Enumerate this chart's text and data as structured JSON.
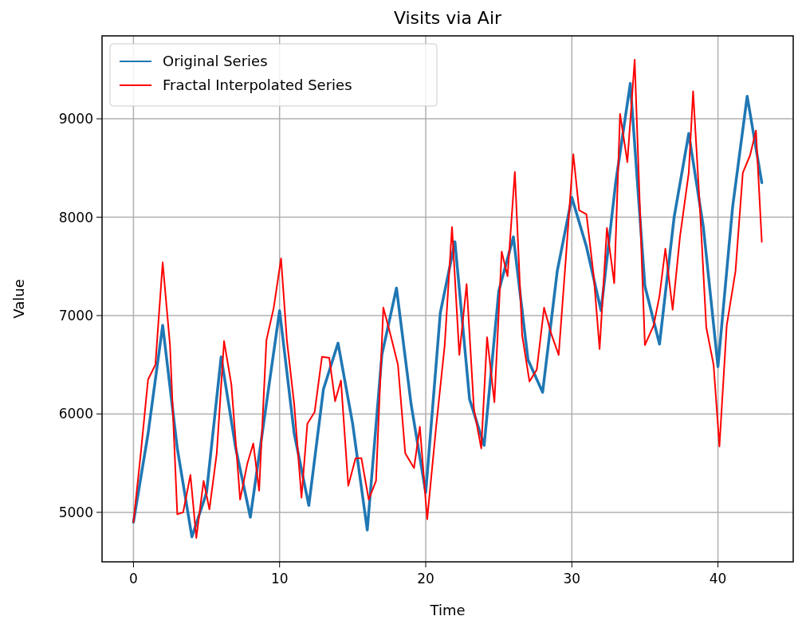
{
  "chart_data": {
    "type": "line",
    "title": "Visits via Air",
    "xlabel": "Time",
    "ylabel": "Value",
    "xlim": [
      -2.15,
      45.15
    ],
    "ylim": [
      4497,
      9843
    ],
    "xticks": [
      0,
      10,
      20,
      30,
      40
    ],
    "yticks": [
      5000,
      6000,
      7000,
      8000,
      9000
    ],
    "grid": true,
    "legend": "top left",
    "line_style": "solid",
    "series": [
      {
        "name": "Original Series",
        "color": "#1f77b4",
        "x": [
          0,
          1,
          2,
          3,
          4,
          5,
          6,
          7,
          8,
          9,
          10,
          11,
          12,
          13,
          14,
          15,
          16,
          17,
          18,
          19,
          20,
          21,
          22,
          23,
          24,
          25,
          26,
          27,
          28,
          29,
          30,
          31,
          32,
          33,
          34,
          35,
          36,
          37,
          38,
          39,
          40,
          41,
          42,
          43
        ],
        "values": [
          4900,
          5800,
          6900,
          5650,
          4750,
          5200,
          6580,
          5650,
          4950,
          6000,
          7050,
          5800,
          5070,
          6250,
          6720,
          5900,
          4820,
          6600,
          7280,
          6100,
          5200,
          7030,
          7750,
          6150,
          5680,
          7250,
          7800,
          6550,
          6220,
          7450,
          8200,
          7700,
          7050,
          8350,
          9360,
          7300,
          6710,
          8000,
          8850,
          7900,
          6480,
          8100,
          9230,
          8350
        ]
      },
      {
        "name": "Fractal Interpolated Series",
        "color": "#ff0000",
        "x": [
          0,
          0.5,
          1,
          1.5,
          2,
          2.5,
          3,
          3.4,
          3.9,
          4.3,
          4.8,
          5.2,
          5.7,
          6.2,
          6.7,
          7.3,
          7.8,
          8.2,
          8.6,
          9.1,
          9.6,
          10.1,
          10.5,
          11,
          11.5,
          11.9,
          12.4,
          12.9,
          13.4,
          13.8,
          14.2,
          14.7,
          15.2,
          15.6,
          16.1,
          16.6,
          17.1,
          17.6,
          18.1,
          18.6,
          19.2,
          19.6,
          20.1,
          20.7,
          21.3,
          21.8,
          22.3,
          22.8,
          23.3,
          23.8,
          24.2,
          24.7,
          25.2,
          25.6,
          26.1,
          26.6,
          27.1,
          27.6,
          28.1,
          28.6,
          29.1,
          29.6,
          30.1,
          30.5,
          31,
          31.5,
          31.9,
          32.4,
          32.9,
          33.3,
          33.8,
          34.3,
          34.8,
          35,
          35.6,
          36,
          36.4,
          36.9,
          37.4,
          38,
          38.3,
          38.8,
          39.2,
          39.7,
          40.1,
          40.6,
          41.2,
          41.7,
          42.2,
          42.6,
          43
        ],
        "values": [
          4900,
          5600,
          6350,
          6500,
          7540,
          6700,
          4980,
          5000,
          5380,
          4740,
          5320,
          5030,
          5600,
          6740,
          6300,
          5130,
          5500,
          5700,
          5220,
          6750,
          7080,
          7580,
          6750,
          6100,
          5150,
          5900,
          6020,
          6580,
          6570,
          6130,
          6340,
          5270,
          5550,
          5550,
          5130,
          5320,
          7080,
          6800,
          6500,
          5600,
          5450,
          5870,
          4930,
          5850,
          6700,
          7900,
          6600,
          7320,
          6050,
          5650,
          6780,
          6120,
          7650,
          7400,
          8460,
          6800,
          6330,
          6450,
          7080,
          6810,
          6600,
          7600,
          8640,
          8070,
          8030,
          7400,
          6660,
          7890,
          7330,
          9050,
          8560,
          9600,
          7500,
          6700,
          6900,
          7200,
          7680,
          7060,
          7800,
          8450,
          9280,
          8000,
          6880,
          6500,
          5670,
          6900,
          7450,
          8450,
          8630,
          8880,
          7750
        ]
      }
    ]
  }
}
